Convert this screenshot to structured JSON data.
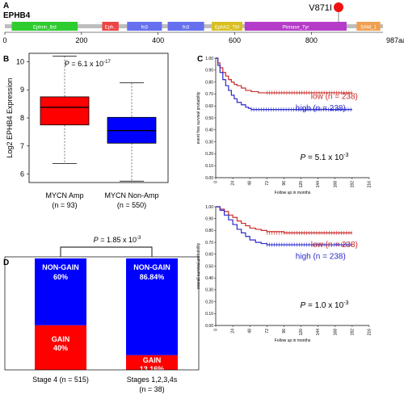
{
  "panel_a": {
    "letter": "A",
    "gene": "EPHB4",
    "mutation": "V871I",
    "end_label": "987aa",
    "domains": [
      {
        "name": "Ephrin_lbd",
        "start": 18,
        "end": 190,
        "color": "#2ecc2e"
      },
      {
        "name": "Eph..",
        "start": 254,
        "end": 297,
        "color": "#ee4444"
      },
      {
        "name": "fn3",
        "start": 319,
        "end": 410,
        "color": "#6670ee"
      },
      {
        "name": "fn3",
        "start": 425,
        "end": 520,
        "color": "#6670ee"
      },
      {
        "name": "EphA2_TM",
        "start": 540,
        "end": 620,
        "color": "#d8c020"
      },
      {
        "name": "Pkinase_Tyr",
        "start": 626,
        "end": 892,
        "color": "#b43cc8"
      },
      {
        "name": "SAM_1",
        "start": 918,
        "end": 980,
        "color": "#f0a050"
      }
    ],
    "mutation_position": 871,
    "ticks": [
      "0",
      "200",
      "400",
      "600",
      "800"
    ]
  },
  "panel_b": {
    "letter": "B",
    "pvalue": "P = 6.1 x 10",
    "pvalue_exp": "-17",
    "ylabel": "Log2 EPHB4 Expression",
    "y_ticks": [
      "6",
      "7",
      "8",
      "9",
      "10"
    ],
    "groups": [
      {
        "label": "MYCN Amp",
        "n": "(n = 93)"
      },
      {
        "label": "MYCN Non-Amp",
        "n": "(n = 550)"
      }
    ]
  },
  "panel_c": {
    "letter": "C",
    "top": {
      "ylabel": "event free survival probability",
      "low_label": "low (n = 238)",
      "high_label": "high (n = 238)",
      "pvalue": "P = 5.1 x 10",
      "pvalue_exp": "-3",
      "xlabel": "Follow up in months"
    },
    "bottom": {
      "ylabel": "overall survival probability",
      "low_label": "low (n = 238)",
      "high_label": "high (n = 238)",
      "pvalue": "P = 1.0 x 10",
      "pvalue_exp": "-3",
      "xlabel": "Follow up in months"
    },
    "y_ticks": [
      "1.00",
      "0.90",
      "0.80",
      "0.70",
      "0.60",
      "0.50",
      "0.40",
      "0.30",
      "0.20",
      "0.10",
      "0.00"
    ],
    "x_ticks": [
      "0",
      "24",
      "48",
      "72",
      "96",
      "120",
      "144",
      "168",
      "192",
      "216"
    ]
  },
  "panel_d": {
    "letter": "D",
    "pvalue": "P = 1.85 x 10",
    "pvalue_exp": "-3",
    "bars": [
      {
        "label": "Stage 4 (n = 515)",
        "nongain_label": "NON-GAIN",
        "nongain_pct": "60%",
        "gain_label": "GAIN",
        "gain_pct": "40%"
      },
      {
        "label": "Stages 1,2,3,4s",
        "label2": "(n = 38)",
        "nongain_label": "NON-GAIN",
        "nongain_pct": "86.84%",
        "gain_label": "GAIN",
        "gain_pct": "13.16%"
      }
    ]
  },
  "chart_data": [
    {
      "type": "box",
      "ylabel": "Log2 EPHB4 Expression",
      "ylim": [
        5.7,
        10.3
      ],
      "categories": [
        "MYCN Amp",
        "MYCN Non-Amp"
      ],
      "boxes": [
        {
          "name": "MYCN Amp",
          "min": 6.38,
          "q1": 7.75,
          "median": 8.38,
          "q3": 8.75,
          "max": 10.2,
          "color": "#ff0000"
        },
        {
          "name": "MYCN Non-Amp",
          "min": 5.75,
          "q1": 7.1,
          "median": 7.55,
          "q3": 8.02,
          "max": 9.25,
          "color": "#0000ff"
        }
      ]
    },
    {
      "type": "line",
      "ylabel": "event free survival probability",
      "xlabel": "Follow up in months",
      "xlim": [
        0,
        216
      ],
      "ylim": [
        0,
        1
      ],
      "series": [
        {
          "name": "low (n = 238)",
          "color": "#cc2a2a",
          "x": [
            0,
            3,
            6,
            10,
            14,
            18,
            22,
            26,
            30,
            36,
            42,
            50,
            60,
            72,
            90,
            192
          ],
          "y": [
            1.0,
            0.96,
            0.92,
            0.88,
            0.85,
            0.82,
            0.8,
            0.78,
            0.77,
            0.75,
            0.73,
            0.72,
            0.71,
            0.71,
            0.71,
            0.71
          ]
        },
        {
          "name": "high (n = 238)",
          "color": "#2a2acc",
          "x": [
            0,
            3,
            6,
            10,
            14,
            18,
            22,
            26,
            30,
            36,
            42,
            46,
            50,
            72,
            192
          ],
          "y": [
            1.0,
            0.94,
            0.88,
            0.82,
            0.77,
            0.73,
            0.69,
            0.66,
            0.63,
            0.61,
            0.59,
            0.58,
            0.57,
            0.57,
            0.57
          ]
        }
      ]
    },
    {
      "type": "line",
      "ylabel": "overall survival probability",
      "xlabel": "Follow up in months",
      "xlim": [
        0,
        216
      ],
      "ylim": [
        0,
        1
      ],
      "series": [
        {
          "name": "low (n = 238)",
          "color": "#cc2a2a",
          "x": [
            0,
            6,
            12,
            18,
            24,
            30,
            36,
            42,
            48,
            56,
            64,
            72,
            96,
            192
          ],
          "y": [
            1.0,
            0.98,
            0.96,
            0.93,
            0.91,
            0.88,
            0.86,
            0.84,
            0.82,
            0.81,
            0.8,
            0.79,
            0.78,
            0.78
          ]
        },
        {
          "name": "high (n = 238)",
          "color": "#2a2acc",
          "x": [
            0,
            6,
            12,
            18,
            24,
            30,
            36,
            42,
            48,
            56,
            64,
            72,
            96,
            192
          ],
          "y": [
            1.0,
            0.97,
            0.93,
            0.89,
            0.85,
            0.81,
            0.78,
            0.75,
            0.72,
            0.7,
            0.69,
            0.68,
            0.68,
            0.68
          ]
        }
      ]
    },
    {
      "type": "bar",
      "stacked": true,
      "categories": [
        "Stage 4 (n = 515)",
        "Stages 1,2,3,4s (n = 38)"
      ],
      "series": [
        {
          "name": "GAIN",
          "color": "#ff0000",
          "values": [
            40,
            13.16
          ]
        },
        {
          "name": "NON-GAIN",
          "color": "#0000ff",
          "values": [
            60,
            86.84
          ]
        }
      ],
      "ylim": [
        0,
        100
      ]
    }
  ]
}
